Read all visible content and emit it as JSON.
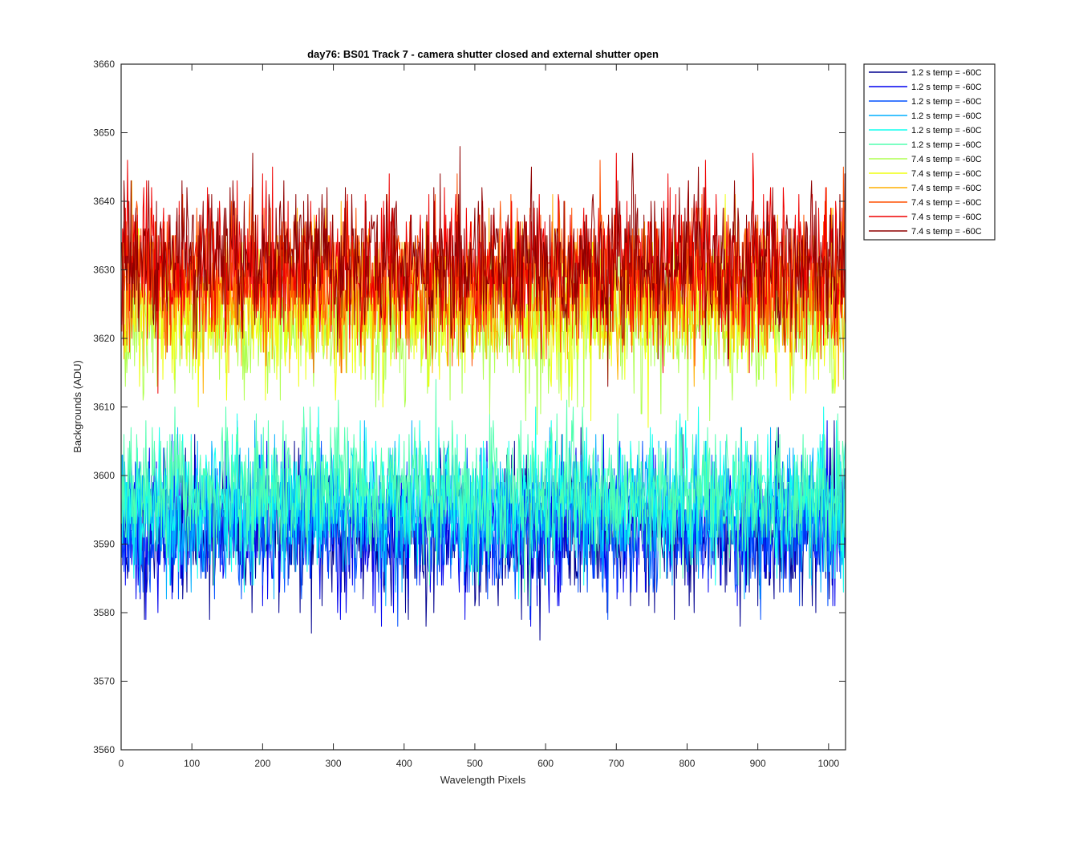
{
  "chart_data": {
    "type": "line",
    "title": "day76: BS01  Track 7 - camera shutter closed and external shutter open",
    "xlabel": "Wavelength Pixels",
    "ylabel": "Backgrounds (ADU)",
    "xlim": [
      0,
      1024
    ],
    "ylim": [
      3560,
      3660
    ],
    "xticks": [
      0,
      100,
      200,
      300,
      400,
      500,
      600,
      700,
      800,
      900,
      1000
    ],
    "yticks": [
      3560,
      3570,
      3580,
      3590,
      3600,
      3610,
      3620,
      3630,
      3640,
      3650,
      3660
    ],
    "grid": false,
    "legend_position": "outside-top-right",
    "n_points": 1024,
    "series": [
      {
        "name": "1.2 s temp = -60C",
        "color": "#00008F",
        "mean": 3592,
        "std": 5.2,
        "seed": 11
      },
      {
        "name": "1.2 s temp = -60C",
        "color": "#0000EF",
        "mean": 3592.5,
        "std": 5.0,
        "seed": 23
      },
      {
        "name": "1.2 s temp = -60C",
        "color": "#0050FF",
        "mean": 3593.5,
        "std": 5.0,
        "seed": 37
      },
      {
        "name": "1.2 s temp = -60C",
        "color": "#00AFFF",
        "mean": 3595,
        "std": 5.0,
        "seed": 41
      },
      {
        "name": "1.2 s temp = -60C",
        "color": "#10FFEF",
        "mean": 3596.5,
        "std": 4.8,
        "seed": 53
      },
      {
        "name": "1.2 s temp = -60C",
        "color": "#50FFAF",
        "mean": 3597.5,
        "std": 4.8,
        "seed": 67
      },
      {
        "name": "7.4 s temp = -60C",
        "color": "#AFFF50",
        "mean": 3622,
        "std": 5.0,
        "seed": 71
      },
      {
        "name": "7.4 s temp = -60C",
        "color": "#EFFF10",
        "mean": 3624,
        "std": 5.0,
        "seed": 83
      },
      {
        "name": "7.4 s temp = -60C",
        "color": "#FFAF00",
        "mean": 3627,
        "std": 5.2,
        "seed": 97
      },
      {
        "name": "7.4 s temp = -60C",
        "color": "#FF5000",
        "mean": 3629,
        "std": 5.2,
        "seed": 101
      },
      {
        "name": "7.4 s temp = -60C",
        "color": "#EF0000",
        "mean": 3630.5,
        "std": 5.3,
        "seed": 113
      },
      {
        "name": "7.4 s temp = -60C",
        "color": "#8F0000",
        "mean": 3631.5,
        "std": 5.3,
        "seed": 127
      }
    ]
  }
}
